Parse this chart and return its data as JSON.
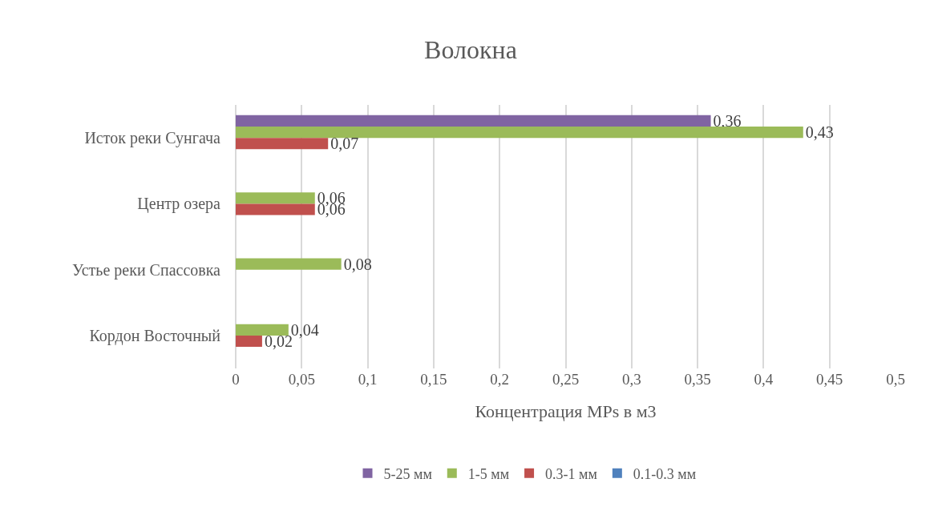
{
  "chart_data": {
    "type": "bar",
    "orientation": "horizontal",
    "title": "Волокна",
    "xlabel": "Концентрация MPs в м3",
    "categories": [
      "Исток реки Сунгача",
      "Центр озера",
      "Устье реки Спассовка",
      "Кордон Восточный"
    ],
    "series": [
      {
        "name": "5-25 мм",
        "color": "#8064a2",
        "values": [
          0.36,
          null,
          null,
          null
        ],
        "value_labels": [
          "0,36",
          null,
          null,
          null
        ]
      },
      {
        "name": "1-5 мм",
        "color": "#9bbb59",
        "values": [
          0.43,
          0.06,
          0.08,
          0.04
        ],
        "value_labels": [
          "0,43",
          "0,06",
          "0,08",
          "0,04"
        ]
      },
      {
        "name": "0.3-1 мм",
        "color": "#c0504d",
        "values": [
          0.07,
          0.06,
          null,
          0.02
        ],
        "value_labels": [
          "0,07",
          "0,06",
          null,
          "0,02"
        ]
      },
      {
        "name": "0.1-0.3 мм",
        "color": "#4f81bd",
        "values": [
          null,
          null,
          null,
          null
        ]
      }
    ],
    "xlim": [
      0,
      0.5
    ],
    "xticks": [
      0,
      {
        "value": 0.05,
        "label": "0,05"
      },
      {
        "value": 0.1,
        "label": "0,1"
      },
      {
        "value": 0.15,
        "label": "0,15"
      },
      {
        "value": 0.2,
        "label": "0,2"
      },
      {
        "value": 0.25,
        "label": "0,25"
      },
      {
        "value": 0.3,
        "label": "0,3"
      },
      {
        "value": 0.35,
        "label": "0,35"
      },
      {
        "value": 0.4,
        "label": "0,4"
      },
      {
        "value": 0.45,
        "label": "0,45"
      },
      {
        "value": 0.5,
        "label": "0,5"
      }
    ],
    "grid": "x",
    "legend": "bottom"
  }
}
